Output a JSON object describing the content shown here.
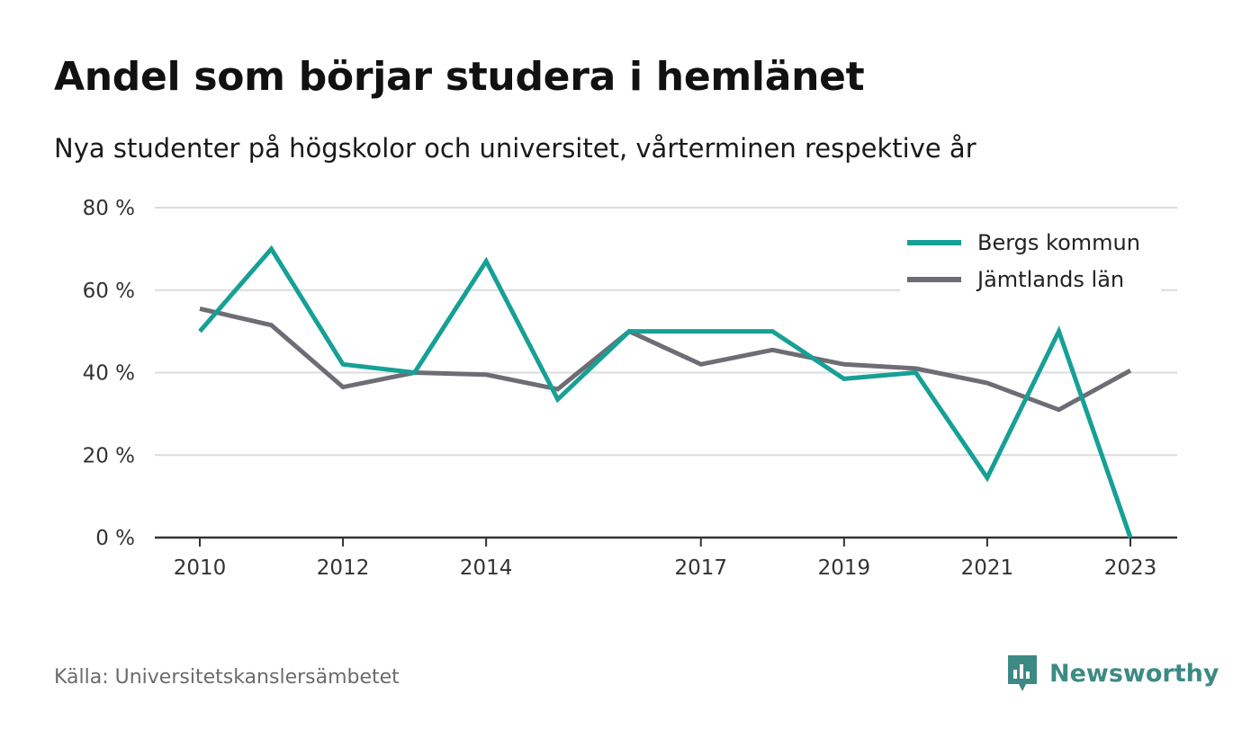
{
  "title": "Andel som börjar studera i hemlänet",
  "subtitle": "Nya studenter på högskolor och universitet, vårterminen respektive år",
  "source": "Källa: Universitetskanslersämbetet",
  "brand": {
    "name": "Newsworthy",
    "icon": "newsworthy-logo-icon",
    "color": "#3d8a84"
  },
  "chart_data": {
    "type": "line",
    "x": [
      2010,
      2011,
      2012,
      2013,
      2014,
      2015,
      2016,
      2017,
      2018,
      2019,
      2020,
      2021,
      2022,
      2023
    ],
    "xticks": [
      "2010",
      "2012",
      "2014",
      "2017",
      "2019",
      "2021",
      "2023"
    ],
    "yticks": [
      "0 %",
      "20 %",
      "40 %",
      "60 %",
      "80 %"
    ],
    "ylim": [
      0,
      80
    ],
    "grid": true,
    "legend_position": "top-right",
    "series": [
      {
        "name": "Bergs kommun",
        "color": "#16a096",
        "values": [
          50,
          70,
          42,
          40,
          67,
          33.5,
          50,
          50,
          50,
          38.5,
          40,
          14.5,
          50,
          0
        ]
      },
      {
        "name": "Jämtlands län",
        "color": "#6e6c74",
        "values": [
          55.5,
          51.5,
          36.5,
          40,
          39.5,
          36,
          50,
          42,
          45.5,
          42,
          41,
          37.5,
          31,
          40.5
        ]
      }
    ]
  }
}
